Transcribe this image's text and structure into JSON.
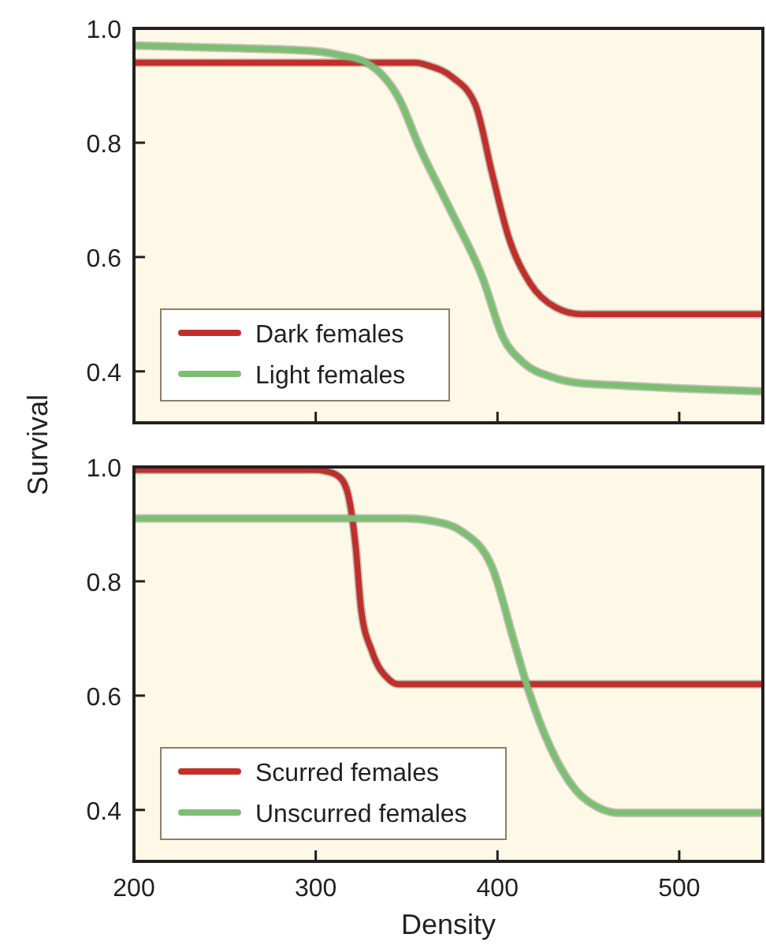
{
  "chart_data": [
    {
      "type": "line",
      "ylabel": "Survival",
      "xlim": [
        200,
        546
      ],
      "xticks": [
        200,
        300,
        400,
        500
      ],
      "ylim": [
        0.31,
        1.0
      ],
      "yticks": [
        {
          "value": 0.4,
          "label": "0.4"
        },
        {
          "value": 0.6,
          "label": "0.6"
        },
        {
          "value": 0.8,
          "label": "0.8"
        },
        {
          "value": 1.0,
          "label": "1.0"
        }
      ],
      "tick_labels": "y",
      "legend": "bottom left",
      "grid": false,
      "marker": "none",
      "line_style": "solid",
      "series": [
        {
          "name": "Dark females",
          "color": "#c0302b",
          "x": [
            200,
            300,
            355,
            362,
            375,
            388,
            397,
            406,
            418,
            432,
            446,
            470,
            546
          ],
          "values": [
            0.94,
            0.94,
            0.94,
            0.935,
            0.915,
            0.865,
            0.747,
            0.636,
            0.554,
            0.512,
            0.5,
            0.5,
            0.5
          ]
        },
        {
          "name": "Light females",
          "color": "#7dbf72",
          "x": [
            200,
            260,
            300,
            315,
            328,
            346,
            357,
            374,
            392,
            403,
            414,
            430,
            444,
            470,
            501,
            546
          ],
          "values": [
            0.97,
            0.965,
            0.96,
            0.952,
            0.94,
            0.876,
            0.793,
            0.683,
            0.562,
            0.46,
            0.416,
            0.39,
            0.38,
            0.375,
            0.37,
            0.365
          ]
        }
      ]
    },
    {
      "type": "line",
      "xlabel": "Density",
      "xlim": [
        200,
        546
      ],
      "xticks": [
        200,
        300,
        400,
        500
      ],
      "ylim": [
        0.31,
        1.0
      ],
      "yticks": [
        {
          "value": 0.4,
          "label": "0.4"
        },
        {
          "value": 0.6,
          "label": "0.6"
        },
        {
          "value": 0.8,
          "label": "0.8"
        },
        {
          "value": 1.0,
          "label": "1.0"
        }
      ],
      "legend": "bottom left",
      "grid": false,
      "marker": "none",
      "line_style": "solid",
      "series": [
        {
          "name": "Scurred females",
          "color": "#c0302b",
          "x": [
            200,
            300,
            305,
            312,
            317,
            322,
            325,
            331,
            340,
            345,
            400,
            546
          ],
          "values": [
            0.995,
            0.995,
            0.993,
            0.985,
            0.961,
            0.86,
            0.75,
            0.677,
            0.629,
            0.62,
            0.62,
            0.62
          ]
        },
        {
          "name": "Unscurred females",
          "color": "#7dbf72",
          "x": [
            200,
            300,
            350,
            365,
            380,
            397,
            409,
            417,
            429,
            443,
            455,
            466,
            500,
            546
          ],
          "values": [
            0.91,
            0.91,
            0.91,
            0.905,
            0.888,
            0.825,
            0.696,
            0.61,
            0.51,
            0.435,
            0.405,
            0.395,
            0.395,
            0.395
          ]
        }
      ]
    }
  ]
}
